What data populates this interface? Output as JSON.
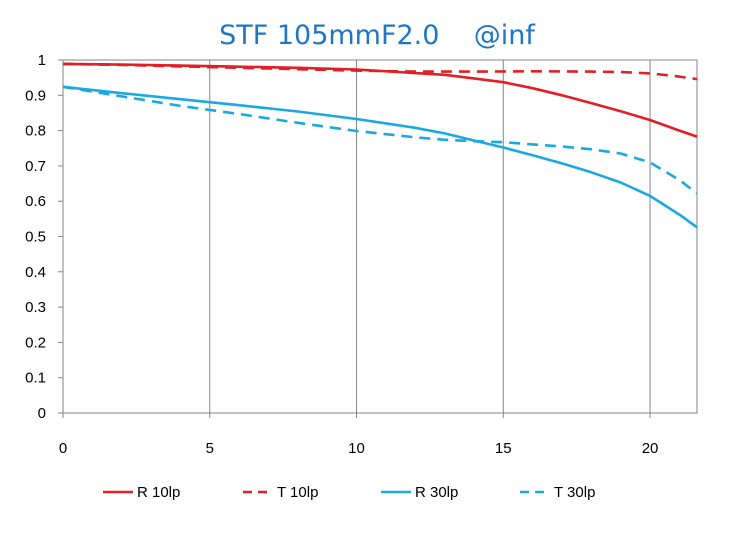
{
  "chart_data": {
    "type": "line",
    "title": "STF 105mmF2.0    @inf",
    "title_color": "#1F77C4",
    "xlabel": "",
    "ylabel": "",
    "xlim": [
      0,
      21.6
    ],
    "ylim": [
      0,
      1
    ],
    "x_ticks": [
      "0",
      "5",
      "10",
      "15",
      "20"
    ],
    "y_ticks": [
      "1",
      "0.9",
      "0.8",
      "0.7",
      "0.6",
      "0.5",
      "0.4",
      "0.3",
      "0.2",
      "0.1",
      "0"
    ],
    "grid": "vertical",
    "legend_position": "bottom",
    "series": [
      {
        "name": "R 10lp",
        "color": "#E31E24",
        "dash": "solid",
        "points": [
          [
            0,
            0.989
          ],
          [
            2,
            0.987
          ],
          [
            4,
            0.984
          ],
          [
            6,
            0.981
          ],
          [
            8,
            0.978
          ],
          [
            10,
            0.973
          ],
          [
            12,
            0.963
          ],
          [
            13,
            0.958
          ],
          [
            14,
            0.948
          ],
          [
            15,
            0.937
          ],
          [
            16,
            0.92
          ],
          [
            17,
            0.9
          ],
          [
            18,
            0.878
          ],
          [
            19,
            0.855
          ],
          [
            20,
            0.83
          ],
          [
            21,
            0.8
          ],
          [
            21.6,
            0.783
          ]
        ]
      },
      {
        "name": "T 10lp",
        "color": "#E31E24",
        "dash": "dashed",
        "points": [
          [
            0,
            0.989
          ],
          [
            2,
            0.986
          ],
          [
            4,
            0.982
          ],
          [
            6,
            0.978
          ],
          [
            8,
            0.974
          ],
          [
            10,
            0.97
          ],
          [
            12,
            0.967
          ],
          [
            14,
            0.967
          ],
          [
            16,
            0.968
          ],
          [
            18,
            0.967
          ],
          [
            19,
            0.966
          ],
          [
            20,
            0.962
          ],
          [
            21,
            0.953
          ],
          [
            21.6,
            0.946
          ]
        ]
      },
      {
        "name": "R 30lp",
        "color": "#1CA8E3",
        "dash": "solid",
        "points": [
          [
            0,
            0.924
          ],
          [
            2,
            0.906
          ],
          [
            4,
            0.889
          ],
          [
            6,
            0.872
          ],
          [
            8,
            0.854
          ],
          [
            10,
            0.833
          ],
          [
            12,
            0.808
          ],
          [
            13,
            0.792
          ],
          [
            14,
            0.772
          ],
          [
            15,
            0.752
          ],
          [
            16,
            0.73
          ],
          [
            17,
            0.707
          ],
          [
            18,
            0.682
          ],
          [
            19,
            0.653
          ],
          [
            20,
            0.615
          ],
          [
            21,
            0.562
          ],
          [
            21.6,
            0.526
          ]
        ]
      },
      {
        "name": "T 30lp",
        "color": "#1CA8E3",
        "dash": "dashed",
        "points": [
          [
            0,
            0.924
          ],
          [
            2,
            0.897
          ],
          [
            4,
            0.87
          ],
          [
            6,
            0.847
          ],
          [
            8,
            0.822
          ],
          [
            10,
            0.799
          ],
          [
            12,
            0.781
          ],
          [
            13,
            0.774
          ],
          [
            14,
            0.77
          ],
          [
            15,
            0.767
          ],
          [
            16,
            0.761
          ],
          [
            17,
            0.755
          ],
          [
            18,
            0.747
          ],
          [
            19,
            0.735
          ],
          [
            20,
            0.71
          ],
          [
            21,
            0.66
          ],
          [
            21.6,
            0.622
          ]
        ]
      }
    ]
  }
}
